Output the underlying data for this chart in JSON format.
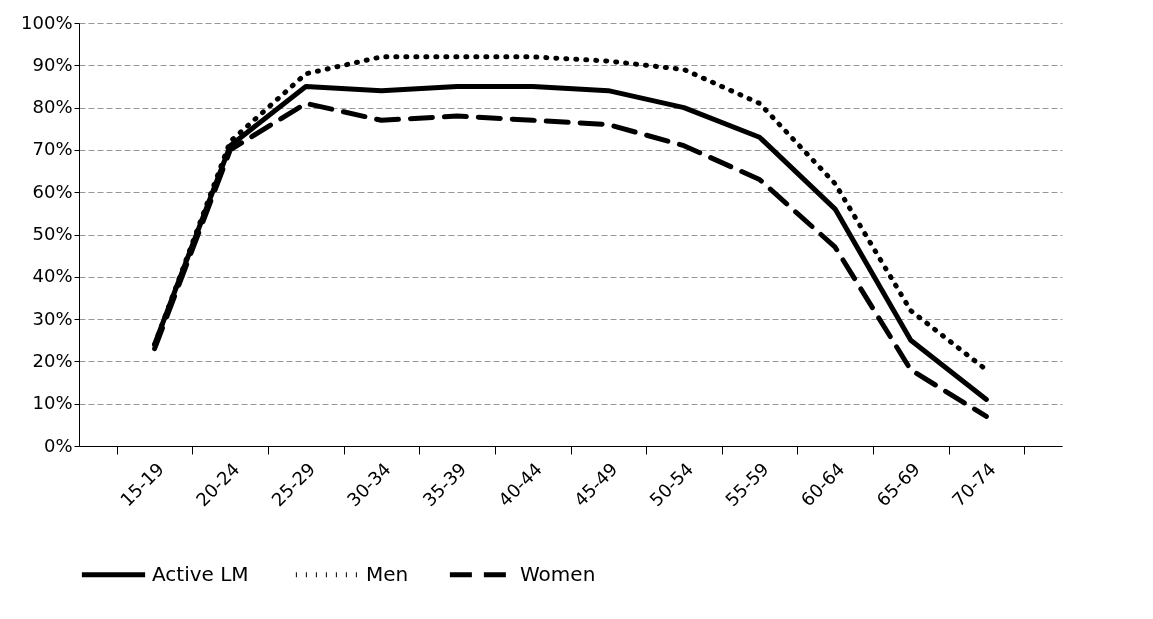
{
  "chart_data": {
    "type": "line",
    "categories": [
      "15-19",
      "20-24",
      "25-29",
      "30-34",
      "35-39",
      "40-44",
      "45-49",
      "50-54",
      "55-59",
      "60-64",
      "65-69",
      "70-74"
    ],
    "series": [
      {
        "name": "Active  LM",
        "color": "#000000",
        "line_style": "solid",
        "values": [
          24,
          71,
          85,
          84,
          85,
          85,
          84,
          80,
          73,
          56,
          25,
          11
        ]
      },
      {
        "name": "Men",
        "color": "#000000",
        "line_style": "dotted",
        "values": [
          24,
          72,
          88,
          92,
          92,
          92,
          91,
          89,
          81,
          62,
          32,
          18
        ]
      },
      {
        "name": "Women",
        "color": "#000000",
        "line_style": "dashed",
        "values": [
          23,
          70,
          81,
          77,
          78,
          77,
          76,
          71,
          63,
          47,
          18,
          7
        ]
      }
    ],
    "ylim": [
      0,
      100
    ],
    "yticks": [
      {
        "value": 0,
        "label": "0%"
      },
      {
        "value": 10,
        "label": "10%"
      },
      {
        "value": 20,
        "label": "20%"
      },
      {
        "value": 30,
        "label": "30%"
      },
      {
        "value": 40,
        "label": "40%"
      },
      {
        "value": 50,
        "label": "50%"
      },
      {
        "value": 60,
        "label": "60%"
      },
      {
        "value": 70,
        "label": "70%"
      },
      {
        "value": 80,
        "label": "80%"
      },
      {
        "value": 90,
        "label": "90%"
      },
      {
        "value": 100,
        "label": "100%"
      }
    ],
    "grid": "y",
    "legend": "bottom",
    "marker": "none"
  }
}
